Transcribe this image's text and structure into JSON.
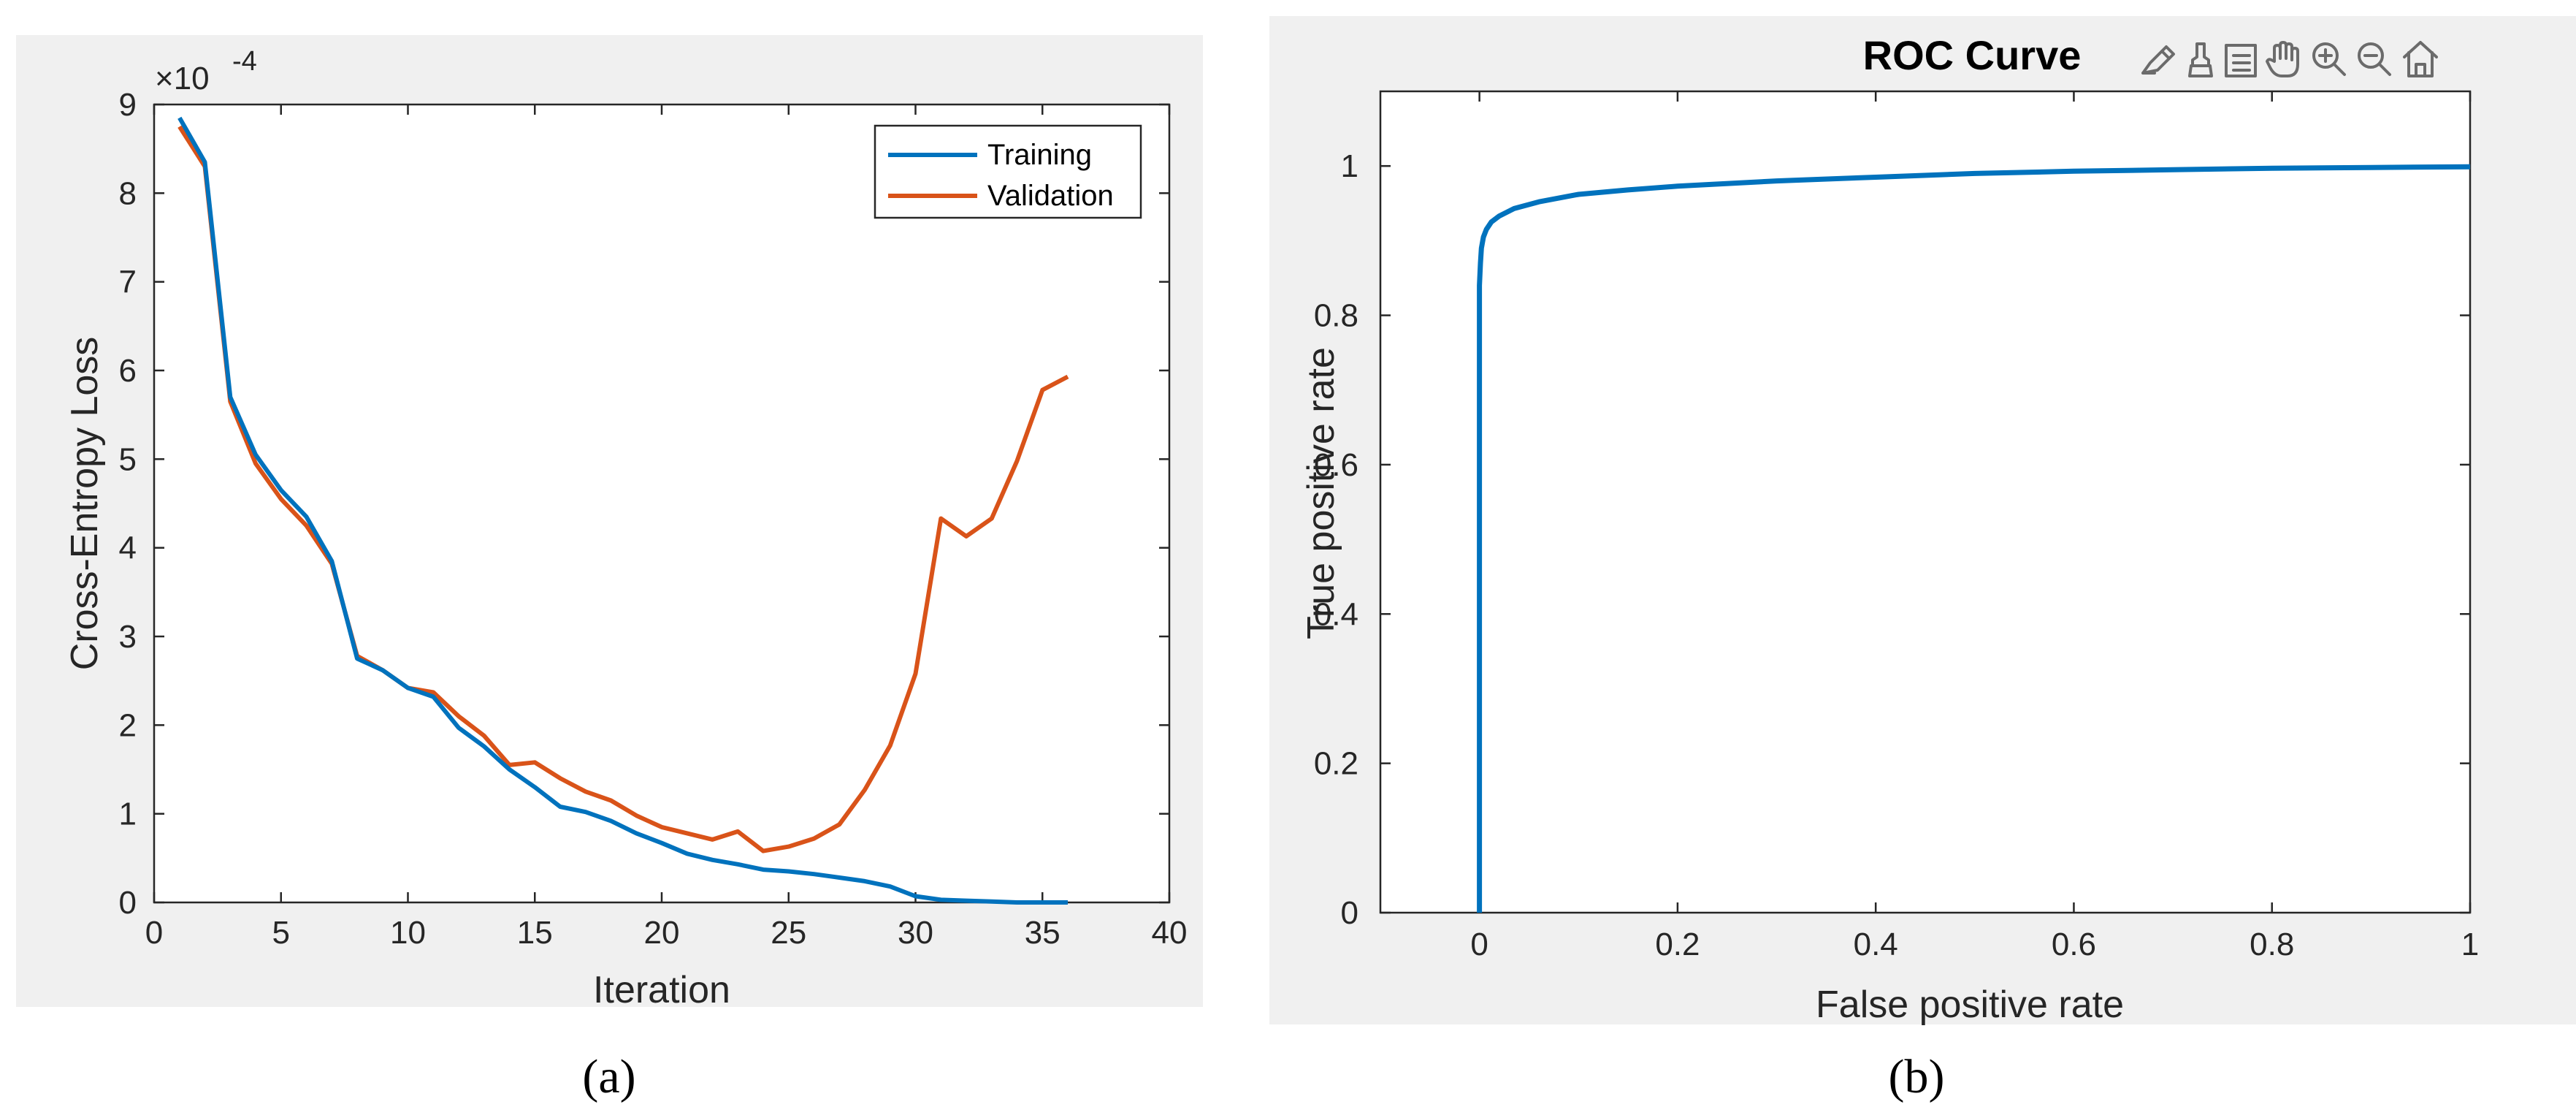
{
  "colors": {
    "training": "#0072BD",
    "validation": "#D95319",
    "roc": "#0072BD"
  },
  "chart_data": [
    {
      "type": "line",
      "caption": "(a)",
      "title": "",
      "xlabel": "Iteration",
      "ylabel": "Cross-Entropy Loss",
      "exponent_label": "×10",
      "exponent_power": "-4",
      "xlim": [
        0,
        40
      ],
      "ylim": [
        0,
        9
      ],
      "xticks": [
        "0",
        "5",
        "10",
        "15",
        "20",
        "25",
        "30",
        "35",
        "40"
      ],
      "yticks": [
        "0",
        "1",
        "2",
        "3",
        "4",
        "5",
        "6",
        "7",
        "8",
        "9"
      ],
      "legend_position": "top-right",
      "x": [
        1,
        2,
        3,
        4,
        5,
        6,
        7,
        8,
        9,
        10,
        11,
        12,
        13,
        14,
        15,
        16,
        17,
        18,
        19,
        20,
        21,
        22,
        23,
        24,
        25,
        26,
        27,
        28,
        29,
        30,
        31,
        32,
        33,
        34,
        35,
        36
      ],
      "series": [
        {
          "name": "Training",
          "values": [
            8.85,
            8.35,
            5.7,
            5.05,
            4.65,
            4.35,
            3.85,
            2.75,
            2.62,
            2.42,
            2.32,
            1.97,
            1.76,
            1.5,
            1.3,
            1.08,
            1.02,
            0.92,
            0.78,
            0.67,
            0.55,
            0.48,
            0.43,
            0.37,
            0.35,
            0.32,
            0.28,
            0.24,
            0.18,
            0.07,
            0.03,
            0.02,
            0.01,
            0.0,
            0.0,
            0.0
          ]
        },
        {
          "name": "Validation",
          "values": [
            8.75,
            8.3,
            5.65,
            4.95,
            4.55,
            4.25,
            3.82,
            2.78,
            2.62,
            2.42,
            2.37,
            2.1,
            1.88,
            1.55,
            1.58,
            1.4,
            1.25,
            1.15,
            0.98,
            0.85,
            0.78,
            0.71,
            0.8,
            0.58,
            0.63,
            0.72,
            0.88,
            1.27,
            1.77,
            2.58,
            4.33,
            4.13,
            4.33,
            4.98,
            5.78,
            5.93
          ]
        }
      ]
    },
    {
      "type": "line",
      "caption": "(b)",
      "title": "ROC Curve",
      "xlabel": "False positive rate",
      "ylabel": "True positive rate",
      "xlim": [
        -0.1,
        1
      ],
      "ylim": [
        0,
        1.1
      ],
      "xticks": [
        "0",
        "0.2",
        "0.4",
        "0.6",
        "0.8",
        "1"
      ],
      "yticks": [
        "0",
        "0.2",
        "0.4",
        "0.6",
        "0.8",
        "1"
      ],
      "series": [
        {
          "name": "ROC",
          "x": [
            0,
            0,
            0.001,
            0.002,
            0.004,
            0.007,
            0.012,
            0.02,
            0.035,
            0.06,
            0.1,
            0.15,
            0.2,
            0.3,
            0.4,
            0.5,
            0.6,
            0.7,
            0.8,
            0.9,
            1.0
          ],
          "y": [
            0,
            0.84,
            0.87,
            0.89,
            0.905,
            0.915,
            0.925,
            0.933,
            0.943,
            0.952,
            0.962,
            0.968,
            0.973,
            0.98,
            0.985,
            0.99,
            0.993,
            0.995,
            0.997,
            0.998,
            0.999
          ]
        }
      ]
    }
  ]
}
